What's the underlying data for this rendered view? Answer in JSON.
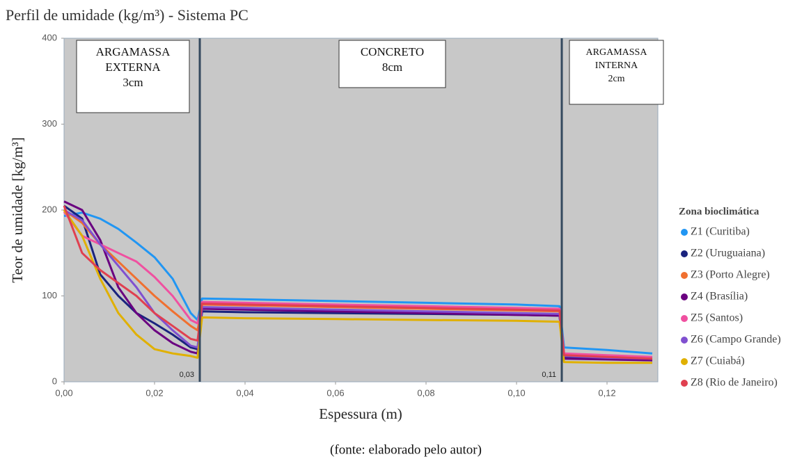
{
  "chart_data": {
    "type": "line",
    "title": "Perfil de umidade (kg/m³) - Sistema PC",
    "x_label": "Espessura (m)",
    "y_label": "Teor de umidade [kg/m³]",
    "caption": "(fonte: elaborado pelo autor)",
    "legend_title": "Zona bioclimática",
    "legend_position": "right",
    "xlim": [
      0,
      0.13
    ],
    "ylim": [
      0,
      400
    ],
    "xticks": [
      {
        "value": 0,
        "label": "0,00"
      },
      {
        "value": 0.02,
        "label": "0,02"
      },
      {
        "value": 0.04,
        "label": "0,04"
      },
      {
        "value": 0.06,
        "label": "0,06"
      },
      {
        "value": 0.08,
        "label": "0,08"
      },
      {
        "value": 0.1,
        "label": "0,10"
      },
      {
        "value": 0.12,
        "label": "0,12"
      }
    ],
    "yticks": [
      0,
      100,
      200,
      300,
      400
    ],
    "boundaries": [
      {
        "value": 0.03,
        "label": "0,03"
      },
      {
        "value": 0.11,
        "label": "0,11"
      }
    ],
    "layers": [
      {
        "lines": [
          "ARGAMASSA",
          "EXTERNA",
          "3cm"
        ]
      },
      {
        "lines": [
          "CONCRETO",
          "8cm"
        ]
      },
      {
        "lines": [
          "ARGAMASSA",
          "INTERNA",
          "2cm"
        ]
      }
    ],
    "x": [
      0,
      0.004,
      0.008,
      0.012,
      0.016,
      0.02,
      0.024,
      0.028,
      0.0295,
      0.0305,
      0.04,
      0.06,
      0.08,
      0.1,
      0.1095,
      0.1105,
      0.12,
      0.13
    ],
    "series": [
      {
        "name": "Z1 (Curitiba)",
        "color": "#2196f3",
        "values": [
          193,
          197,
          190,
          178,
          162,
          145,
          120,
          80,
          72,
          97,
          96,
          94,
          92,
          90,
          88,
          40,
          37,
          33
        ]
      },
      {
        "name": "Z2 (Uruguaiana)",
        "color": "#1a237e",
        "values": [
          205,
          190,
          125,
          100,
          80,
          68,
          55,
          40,
          38,
          82,
          81,
          80,
          79,
          78,
          77,
          28,
          27,
          25
        ]
      },
      {
        "name": "Z3 (Porto Alegre)",
        "color": "#f07030",
        "values": [
          200,
          185,
          160,
          140,
          120,
          100,
          82,
          65,
          60,
          90,
          89,
          87,
          85,
          83,
          82,
          32,
          30,
          28
        ]
      },
      {
        "name": "Z4 (Brasília)",
        "color": "#6a0080",
        "values": [
          210,
          200,
          165,
          110,
          80,
          60,
          45,
          35,
          33,
          85,
          84,
          82,
          80,
          78,
          77,
          27,
          26,
          25
        ]
      },
      {
        "name": "Z5 (Santos)",
        "color": "#f050a0",
        "values": [
          198,
          170,
          160,
          150,
          140,
          122,
          100,
          72,
          68,
          93,
          92,
          90,
          88,
          86,
          85,
          33,
          31,
          29
        ]
      },
      {
        "name": "Z6 (Campo Grande)",
        "color": "#8050d0",
        "values": [
          200,
          188,
          160,
          135,
          110,
          80,
          60,
          42,
          40,
          87,
          86,
          84,
          82,
          80,
          79,
          30,
          28,
          27
        ]
      },
      {
        "name": "Z7 (Cuiabá)",
        "color": "#e0b000",
        "values": [
          200,
          170,
          120,
          80,
          55,
          38,
          33,
          30,
          28,
          75,
          74,
          73,
          72,
          71,
          70,
          23,
          22,
          22
        ]
      },
      {
        "name": "Z8 (Rio de Janeiro)",
        "color": "#e04050",
        "values": [
          205,
          150,
          130,
          115,
          100,
          80,
          65,
          50,
          48,
          91,
          90,
          88,
          86,
          84,
          83,
          31,
          29,
          27
        ]
      }
    ]
  }
}
